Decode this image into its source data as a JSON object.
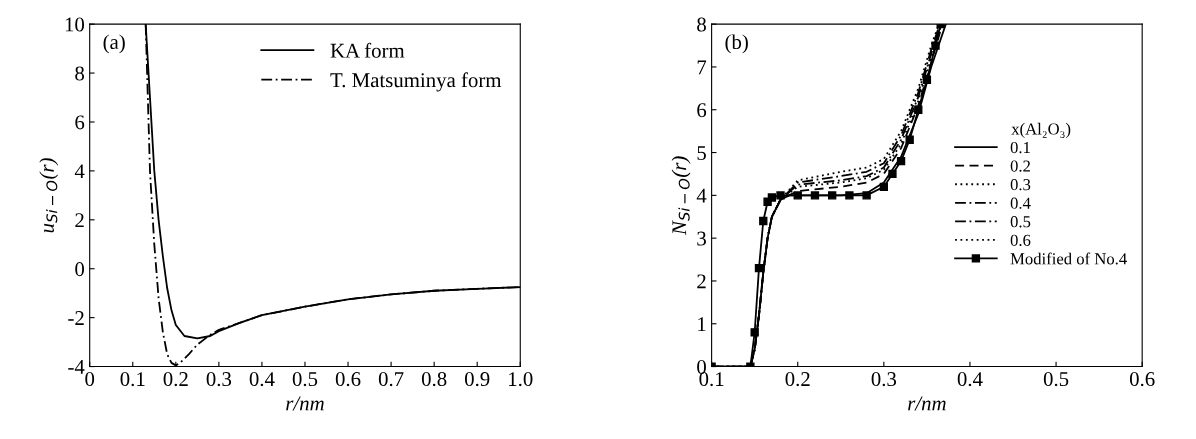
{
  "chart_data": [
    {
      "type": "line",
      "xlabel": "r/nm",
      "ylabel": "u$_{Si−O}$(r)",
      "annotations": [
        "(a)"
      ],
      "legend": "top right",
      "grid": false,
      "xlim": [
        0,
        1.0
      ],
      "xticks": [
        0,
        0.1,
        0.2,
        0.3,
        0.4,
        0.5,
        0.6,
        0.7,
        0.8,
        0.9,
        {
          "value": 1.0,
          "label": "1.0"
        }
      ],
      "ylim": [
        -4,
        10
      ],
      "yticks": [
        -4,
        -2,
        0,
        2,
        4,
        6,
        8,
        10
      ],
      "series": [
        {
          "name": "KA form",
          "color": "#000000",
          "line_style": "solid",
          "x": [
            0.13,
            0.14,
            0.15,
            0.16,
            0.17,
            0.18,
            0.19,
            0.2,
            0.22,
            0.25,
            0.28,
            0.3,
            0.35,
            0.4,
            0.5,
            0.6,
            0.7,
            0.8,
            0.9,
            1.0
          ],
          "values": [
            10,
            7,
            4,
            2,
            0.5,
            -0.8,
            -1.7,
            -2.3,
            -2.75,
            -2.85,
            -2.75,
            -2.55,
            -2.2,
            -1.9,
            -1.55,
            -1.25,
            -1.05,
            -0.9,
            -0.82,
            -0.75
          ]
        },
        {
          "name": "T. Matsuminya form",
          "color": "#000000",
          "line_style": "dashdot",
          "x": [
            0.13,
            0.14,
            0.15,
            0.16,
            0.17,
            0.18,
            0.19,
            0.2,
            0.21,
            0.23,
            0.25,
            0.28,
            0.3,
            0.35,
            0.4,
            0.5,
            0.6,
            0.7,
            0.8,
            0.9,
            1.0
          ],
          "values": [
            10,
            4,
            1,
            -1.2,
            -2.6,
            -3.5,
            -3.85,
            -3.95,
            -3.85,
            -3.5,
            -3.1,
            -2.7,
            -2.5,
            -2.2,
            -1.9,
            -1.55,
            -1.25,
            -1.05,
            -0.9,
            -0.82,
            -0.75
          ]
        }
      ]
    },
    {
      "type": "line",
      "xlabel": "r/nm",
      "ylabel": "N$_{Si−O}$(r)",
      "annotations": [
        "(b)"
      ],
      "legend": "right",
      "legend_title": "x(Al₂O₃)",
      "grid": false,
      "xlim": [
        0.1,
        0.6
      ],
      "xticks": [
        0.1,
        0.2,
        0.3,
        0.4,
        0.5,
        0.6
      ],
      "ylim": [
        0,
        8
      ],
      "yticks": [
        0,
        1,
        2,
        3,
        4,
        5,
        6,
        7,
        8
      ],
      "series": [
        {
          "name": "0.1",
          "color": "#000000",
          "line_style": "solid",
          "x": [
            0.1,
            0.145,
            0.15,
            0.155,
            0.16,
            0.165,
            0.17,
            0.18,
            0.19,
            0.25,
            0.28,
            0.3,
            0.32,
            0.34,
            0.355,
            0.372
          ],
          "values": [
            0,
            0,
            0.4,
            1.2,
            2.2,
            3.0,
            3.5,
            3.9,
            4.0,
            4.0,
            4.05,
            4.3,
            4.9,
            5.9,
            7.0,
            8
          ]
        },
        {
          "name": "0.2",
          "color": "#000000",
          "line_style": "dashed",
          "x": [
            0.1,
            0.145,
            0.15,
            0.155,
            0.16,
            0.165,
            0.17,
            0.18,
            0.2,
            0.25,
            0.28,
            0.3,
            0.32,
            0.34,
            0.355,
            0.368
          ],
          "values": [
            0,
            0,
            0.4,
            1.2,
            2.2,
            3.0,
            3.5,
            3.9,
            4.1,
            4.2,
            4.3,
            4.5,
            5.1,
            6.1,
            7.1,
            8
          ]
        },
        {
          "name": "0.3",
          "color": "#000000",
          "line_style": "dotted",
          "x": [
            0.1,
            0.145,
            0.15,
            0.155,
            0.16,
            0.165,
            0.17,
            0.18,
            0.2,
            0.25,
            0.28,
            0.3,
            0.32,
            0.34,
            0.355,
            0.367
          ],
          "values": [
            0,
            0,
            0.4,
            1.2,
            2.2,
            3.0,
            3.5,
            3.9,
            4.2,
            4.3,
            4.4,
            4.6,
            5.2,
            6.2,
            7.2,
            8
          ]
        },
        {
          "name": "0.4",
          "color": "#000000",
          "line_style": "dashdot",
          "x": [
            0.1,
            0.145,
            0.15,
            0.155,
            0.16,
            0.165,
            0.17,
            0.18,
            0.2,
            0.25,
            0.28,
            0.3,
            0.32,
            0.34,
            0.355,
            0.366
          ],
          "values": [
            0,
            0,
            0.4,
            1.2,
            2.2,
            3.0,
            3.5,
            3.9,
            4.25,
            4.35,
            4.45,
            4.65,
            5.3,
            6.3,
            7.3,
            8
          ]
        },
        {
          "name": "0.5",
          "color": "#000000",
          "line_style": "dashdot",
          "x": [
            0.1,
            0.145,
            0.15,
            0.155,
            0.16,
            0.165,
            0.17,
            0.18,
            0.2,
            0.25,
            0.28,
            0.3,
            0.32,
            0.34,
            0.355,
            0.365
          ],
          "values": [
            0,
            0,
            0.4,
            1.2,
            2.2,
            3.0,
            3.5,
            3.9,
            4.3,
            4.45,
            4.55,
            4.75,
            5.4,
            6.4,
            7.4,
            8
          ]
        },
        {
          "name": "0.6",
          "color": "#000000",
          "line_style": "dotted",
          "x": [
            0.1,
            0.145,
            0.15,
            0.155,
            0.16,
            0.165,
            0.17,
            0.18,
            0.2,
            0.25,
            0.28,
            0.3,
            0.32,
            0.34,
            0.355,
            0.364
          ],
          "values": [
            0,
            0,
            0.4,
            1.2,
            2.2,
            3.0,
            3.5,
            3.9,
            4.35,
            4.55,
            4.65,
            4.85,
            5.5,
            6.5,
            7.5,
            8
          ]
        },
        {
          "name": "Modified of No.4",
          "color": "#000000",
          "line_style": "solid",
          "marker": "square",
          "x": [
            0.1,
            0.145,
            0.15,
            0.155,
            0.16,
            0.165,
            0.17,
            0.18,
            0.2,
            0.22,
            0.24,
            0.26,
            0.28,
            0.3,
            0.31,
            0.32,
            0.33,
            0.34,
            0.35,
            0.36,
            0.366
          ],
          "values": [
            0,
            0,
            0.8,
            2.3,
            3.4,
            3.85,
            3.95,
            4.0,
            4.0,
            4.0,
            4.0,
            4.0,
            4.0,
            4.2,
            4.5,
            4.8,
            5.3,
            6.0,
            6.7,
            7.5,
            8
          ]
        }
      ]
    }
  ]
}
